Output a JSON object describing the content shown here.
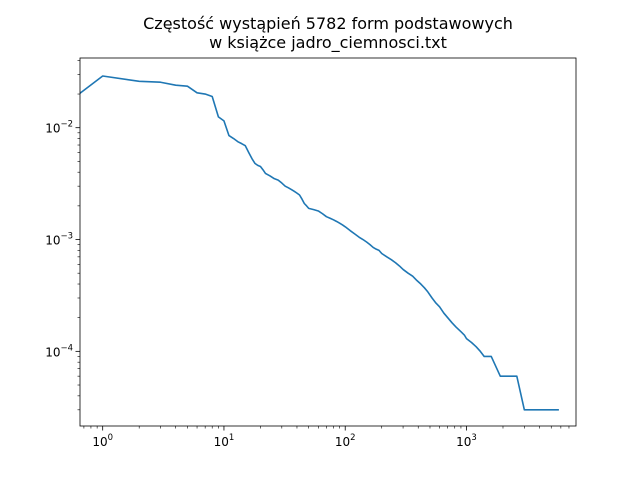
{
  "chart_data": {
    "type": "line",
    "title_lines": [
      "Częstość wystąpień 5782 form podstawowych",
      "w książce jadro_ciemnosci.txt"
    ],
    "xlabel": "",
    "ylabel": "",
    "xscale": "log",
    "yscale": "log",
    "xlim": [
      0.65,
      8000
    ],
    "ylim": [
      2.15e-05,
      0.042
    ],
    "grid": false,
    "legend": "none",
    "line_color": "#1f77b4",
    "x_ticks": [
      {
        "value": 1,
        "base": "10",
        "exp": "0"
      },
      {
        "value": 10,
        "base": "10",
        "exp": "1"
      },
      {
        "value": 100,
        "base": "10",
        "exp": "2"
      },
      {
        "value": 1000,
        "base": "10",
        "exp": "3"
      }
    ],
    "y_ticks": [
      {
        "value": 0.01,
        "base": "10",
        "exp": "−2"
      },
      {
        "value": 0.001,
        "base": "10",
        "exp": "−3"
      },
      {
        "value": 0.0001,
        "base": "10",
        "exp": "−4"
      }
    ],
    "series": [
      {
        "x": [
          0.6,
          1,
          2,
          3,
          4,
          5,
          6,
          7,
          8,
          9,
          10,
          11,
          12,
          13,
          14,
          15,
          16,
          17,
          18,
          19,
          20,
          21,
          22,
          24,
          26,
          28,
          30,
          32,
          34,
          36,
          38,
          40,
          42,
          44,
          46,
          48,
          50,
          55,
          60,
          65,
          70,
          75,
          80,
          85,
          90,
          95,
          100,
          110,
          120,
          130,
          140,
          150,
          160,
          170,
          180,
          190,
          200,
          220,
          240,
          260,
          280,
          300,
          330,
          360,
          390,
          420,
          450,
          480,
          520,
          560,
          600,
          650,
          700,
          760,
          820,
          900,
          960,
          1000,
          1100,
          1200,
          1300,
          1400,
          1600,
          1900,
          2200,
          2600,
          3000,
          3500,
          4200,
          5000,
          5782
        ],
        "y": [
          0.019,
          0.029,
          0.026,
          0.0255,
          0.024,
          0.0235,
          0.0205,
          0.02,
          0.019,
          0.0125,
          0.0115,
          0.0085,
          0.008,
          0.0075,
          0.0072,
          0.0069,
          0.006,
          0.0053,
          0.0048,
          0.0046,
          0.0045,
          0.0042,
          0.0039,
          0.0037,
          0.0035,
          0.0034,
          0.0032,
          0.003,
          0.0029,
          0.0028,
          0.0027,
          0.0026,
          0.0025,
          0.0023,
          0.0021,
          0.002,
          0.0019,
          0.00185,
          0.0018,
          0.0017,
          0.0016,
          0.00155,
          0.0015,
          0.00145,
          0.0014,
          0.00135,
          0.0013,
          0.0012,
          0.00112,
          0.00105,
          0.001,
          0.00095,
          0.0009,
          0.00085,
          0.00082,
          0.0008,
          0.00075,
          0.0007,
          0.00066,
          0.00062,
          0.00058,
          0.00054,
          0.0005,
          0.00047,
          0.00043,
          0.0004,
          0.00037,
          0.00034,
          0.0003,
          0.00027,
          0.00025,
          0.00022,
          0.0002,
          0.00018,
          0.000165,
          0.00015,
          0.00014,
          0.00013,
          0.00012,
          0.00011,
          0.0001,
          9e-05,
          9e-05,
          6e-05,
          6e-05,
          6e-05,
          3e-05,
          3e-05,
          3e-05,
          3e-05,
          3e-05
        ]
      }
    ]
  }
}
